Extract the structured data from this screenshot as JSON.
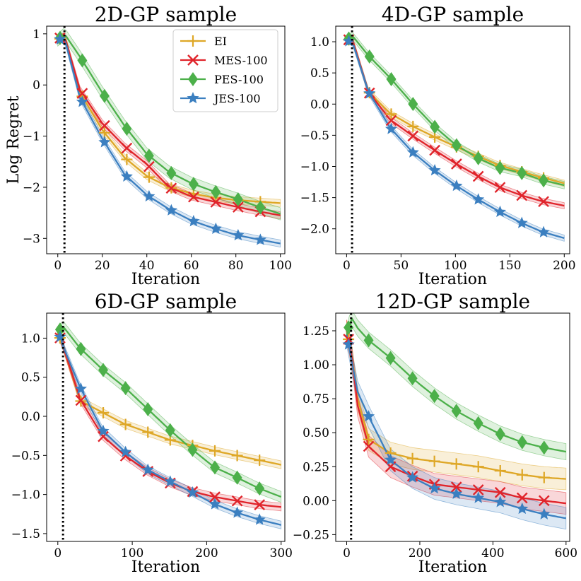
{
  "colors": {
    "EI": "#dea726",
    "MES-100": "#e0242b",
    "PES-100": "#4cb04a",
    "JES-100": "#3b7fc0"
  },
  "legend": {
    "entries": [
      {
        "name": "EI",
        "marker": "plus"
      },
      {
        "name": "MES-100",
        "marker": "x"
      },
      {
        "name": "PES-100",
        "marker": "diamond"
      },
      {
        "name": "JES-100",
        "marker": "star"
      }
    ],
    "placement": "top-right of first panel"
  },
  "chart_data": [
    {
      "type": "line",
      "title": "2D-GP sample",
      "xlabel": "Iteration",
      "ylabel": "Log Regret",
      "xlim": [
        -5,
        102
      ],
      "ylim": [
        -3.3,
        1.15
      ],
      "xticks": [
        0,
        20,
        40,
        60,
        80,
        100
      ],
      "yticks": [
        1,
        0,
        -1,
        -2,
        -3
      ],
      "ytick_labels": [
        "1",
        "0",
        "−1",
        "−2",
        "−3"
      ],
      "init_line_x": 3,
      "series": [
        {
          "name": "EI",
          "x": [
            0,
            3,
            10,
            20,
            30,
            40,
            50,
            60,
            70,
            80,
            90,
            100
          ],
          "values": [
            0.88,
            0.95,
            -0.15,
            -0.88,
            -1.42,
            -1.78,
            -2.0,
            -2.12,
            -2.2,
            -2.25,
            -2.28,
            -2.31
          ],
          "band": 0.07,
          "markers_x": [
            1,
            11,
            21,
            31,
            41,
            51,
            61,
            71,
            81,
            91
          ]
        },
        {
          "name": "MES-100",
          "x": [
            0,
            3,
            10,
            20,
            30,
            40,
            50,
            60,
            70,
            80,
            90,
            100
          ],
          "values": [
            0.9,
            0.95,
            -0.1,
            -0.75,
            -1.2,
            -1.55,
            -2.0,
            -2.18,
            -2.28,
            -2.38,
            -2.47,
            -2.55
          ],
          "band": 0.07,
          "markers_x": [
            1,
            11,
            21,
            31,
            41,
            51,
            61,
            71,
            81,
            91
          ]
        },
        {
          "name": "PES-100",
          "x": [
            0,
            3,
            10,
            20,
            30,
            40,
            50,
            60,
            70,
            80,
            90,
            100
          ],
          "values": [
            0.88,
            1.0,
            0.55,
            -0.15,
            -0.8,
            -1.35,
            -1.7,
            -1.92,
            -2.08,
            -2.22,
            -2.38,
            -2.52
          ],
          "band": 0.12,
          "markers_x": [
            1,
            11,
            21,
            31,
            41,
            51,
            61,
            71,
            81,
            91
          ]
        },
        {
          "name": "JES-100",
          "x": [
            0,
            3,
            10,
            20,
            30,
            40,
            50,
            60,
            70,
            80,
            90,
            100
          ],
          "values": [
            0.88,
            0.92,
            -0.25,
            -1.05,
            -1.75,
            -2.15,
            -2.43,
            -2.65,
            -2.8,
            -2.93,
            -3.02,
            -3.1
          ],
          "band": 0.07,
          "markers_x": [
            1,
            11,
            21,
            31,
            41,
            51,
            61,
            71,
            81,
            91
          ]
        }
      ]
    },
    {
      "type": "line",
      "title": "4D-GP sample",
      "xlabel": "Iteration",
      "ylabel": "",
      "xlim": [
        -10,
        205
      ],
      "ylim": [
        -2.4,
        1.25
      ],
      "xticks": [
        0,
        50,
        100,
        150,
        200
      ],
      "yticks": [
        1.0,
        0.5,
        0.0,
        -0.5,
        -1.0,
        -1.5,
        -2.0
      ],
      "ytick_labels": [
        "1.0",
        "0.5",
        "0.0",
        "−0.5",
        "−1.0",
        "−1.5",
        "−2.0"
      ],
      "init_line_x": 5,
      "series": [
        {
          "name": "EI",
          "x": [
            0,
            5,
            20,
            40,
            60,
            80,
            100,
            120,
            140,
            160,
            180,
            200
          ],
          "values": [
            1.02,
            1.05,
            0.2,
            -0.15,
            -0.35,
            -0.52,
            -0.68,
            -0.83,
            -0.98,
            -1.08,
            -1.18,
            -1.27
          ],
          "band": 0.05,
          "markers_x": [
            2,
            21,
            41,
            61,
            81,
            101,
            121,
            141,
            161,
            181
          ]
        },
        {
          "name": "MES-100",
          "x": [
            0,
            5,
            20,
            40,
            60,
            80,
            100,
            120,
            140,
            160,
            180,
            200
          ],
          "values": [
            1.02,
            1.05,
            0.2,
            -0.25,
            -0.5,
            -0.73,
            -0.95,
            -1.15,
            -1.33,
            -1.46,
            -1.56,
            -1.63
          ],
          "band": 0.05,
          "markers_x": [
            2,
            21,
            41,
            61,
            81,
            101,
            121,
            141,
            161,
            181
          ]
        },
        {
          "name": "PES-100",
          "x": [
            0,
            5,
            20,
            40,
            60,
            80,
            100,
            120,
            140,
            160,
            180,
            200
          ],
          "values": [
            1.02,
            1.1,
            0.78,
            0.42,
            0.02,
            -0.35,
            -0.65,
            -0.86,
            -1.02,
            -1.1,
            -1.22,
            -1.3
          ],
          "band": 0.06,
          "markers_x": [
            2,
            21,
            41,
            61,
            81,
            101,
            121,
            141,
            161,
            181
          ]
        },
        {
          "name": "JES-100",
          "x": [
            0,
            5,
            20,
            40,
            60,
            80,
            100,
            120,
            140,
            160,
            180,
            200
          ],
          "values": [
            1.0,
            1.02,
            0.2,
            -0.38,
            -0.76,
            -1.05,
            -1.3,
            -1.52,
            -1.72,
            -1.9,
            -2.05,
            -2.15
          ],
          "band": 0.05,
          "markers_x": [
            2,
            21,
            41,
            61,
            81,
            101,
            121,
            141,
            161,
            181
          ]
        }
      ]
    },
    {
      "type": "line",
      "title": "6D-GP sample",
      "xlabel": "Iteration",
      "ylabel": "",
      "xlim": [
        -15,
        305
      ],
      "ylim": [
        -1.6,
        1.32
      ],
      "xticks": [
        0,
        100,
        200,
        300
      ],
      "yticks": [
        1.0,
        0.5,
        0.0,
        -0.5,
        -1.0,
        -1.5
      ],
      "ytick_labels": [
        "1.0",
        "0.5",
        "0.0",
        "−0.5",
        "−1.0",
        "−1.5"
      ],
      "init_line_x": 7,
      "series": [
        {
          "name": "EI",
          "x": [
            0,
            7,
            30,
            60,
            90,
            120,
            150,
            180,
            210,
            240,
            270,
            300
          ],
          "values": [
            1.08,
            0.9,
            0.2,
            0.05,
            -0.1,
            -0.2,
            -0.3,
            -0.37,
            -0.44,
            -0.5,
            -0.56,
            -0.62
          ],
          "band": 0.05,
          "markers_x": [
            3,
            31,
            61,
            91,
            121,
            151,
            181,
            211,
            241,
            271
          ]
        },
        {
          "name": "MES-100",
          "x": [
            0,
            7,
            30,
            60,
            90,
            120,
            150,
            180,
            210,
            240,
            270,
            300
          ],
          "values": [
            1.08,
            0.9,
            0.22,
            -0.25,
            -0.5,
            -0.7,
            -0.85,
            -0.96,
            -1.03,
            -1.08,
            -1.13,
            -1.16
          ],
          "band": 0.05,
          "markers_x": [
            3,
            31,
            61,
            91,
            121,
            151,
            181,
            211,
            241,
            271
          ]
        },
        {
          "name": "PES-100",
          "x": [
            0,
            7,
            30,
            60,
            90,
            120,
            150,
            180,
            210,
            240,
            270,
            300
          ],
          "values": [
            1.08,
            1.15,
            0.87,
            0.6,
            0.37,
            0.1,
            -0.17,
            -0.42,
            -0.65,
            -0.78,
            -0.92,
            -1.03
          ],
          "band": 0.07,
          "markers_x": [
            3,
            31,
            61,
            91,
            121,
            151,
            181,
            211,
            241,
            271
          ]
        },
        {
          "name": "JES-100",
          "x": [
            0,
            7,
            30,
            60,
            90,
            120,
            150,
            180,
            210,
            240,
            270,
            300
          ],
          "values": [
            1.1,
            0.9,
            0.37,
            -0.18,
            -0.45,
            -0.68,
            -0.83,
            -0.97,
            -1.12,
            -1.23,
            -1.32,
            -1.39
          ],
          "band": 0.05,
          "markers_x": [
            3,
            31,
            61,
            91,
            121,
            151,
            181,
            211,
            241,
            271
          ]
        }
      ]
    },
    {
      "type": "line",
      "title": "12D-GP sample",
      "xlabel": "Iteration",
      "ylabel": "",
      "xlim": [
        -30,
        610
      ],
      "ylim": [
        -0.3,
        1.38
      ],
      "xticks": [
        0,
        200,
        400,
        600
      ],
      "yticks": [
        1.25,
        1.0,
        0.75,
        0.5,
        0.25,
        0.0,
        -0.25
      ],
      "ytick_labels": [
        "1.25",
        "1.00",
        "0.75",
        "0.50",
        "0.25",
        "0.00",
        "−0.25"
      ],
      "init_line_x": 12,
      "series": [
        {
          "name": "EI",
          "x": [
            0,
            12,
            30,
            60,
            120,
            180,
            240,
            300,
            360,
            420,
            480,
            540,
            600
          ],
          "values": [
            1.25,
            1.1,
            0.75,
            0.45,
            0.35,
            0.31,
            0.29,
            0.27,
            0.25,
            0.22,
            0.19,
            0.17,
            0.16
          ],
          "band": 0.08,
          "markers_x": [
            5,
            60,
            120,
            180,
            240,
            300,
            360,
            420,
            480,
            540
          ]
        },
        {
          "name": "MES-100",
          "x": [
            0,
            12,
            30,
            60,
            120,
            180,
            240,
            300,
            360,
            420,
            480,
            540,
            600
          ],
          "values": [
            1.25,
            1.1,
            0.7,
            0.4,
            0.25,
            0.18,
            0.12,
            0.1,
            0.08,
            0.06,
            0.02,
            0.0,
            -0.02
          ],
          "band": 0.08,
          "markers_x": [
            5,
            60,
            120,
            180,
            240,
            300,
            360,
            420,
            480,
            540
          ]
        },
        {
          "name": "PES-100",
          "x": [
            0,
            12,
            30,
            60,
            120,
            180,
            240,
            300,
            360,
            420,
            480,
            540,
            600
          ],
          "values": [
            1.22,
            1.35,
            1.27,
            1.18,
            1.05,
            0.9,
            0.77,
            0.66,
            0.57,
            0.49,
            0.43,
            0.39,
            0.36
          ],
          "band": 0.06,
          "markers_x": [
            5,
            60,
            120,
            180,
            240,
            300,
            360,
            420,
            480,
            540
          ]
        },
        {
          "name": "JES-100",
          "x": [
            0,
            12,
            30,
            60,
            120,
            180,
            240,
            300,
            360,
            420,
            480,
            540,
            600
          ],
          "values": [
            1.22,
            1.05,
            0.8,
            0.62,
            0.3,
            0.17,
            0.09,
            0.05,
            0.02,
            -0.01,
            -0.06,
            -0.1,
            -0.13
          ],
          "band": 0.08,
          "markers_x": [
            5,
            60,
            120,
            180,
            240,
            300,
            360,
            420,
            480,
            540
          ]
        }
      ]
    }
  ]
}
